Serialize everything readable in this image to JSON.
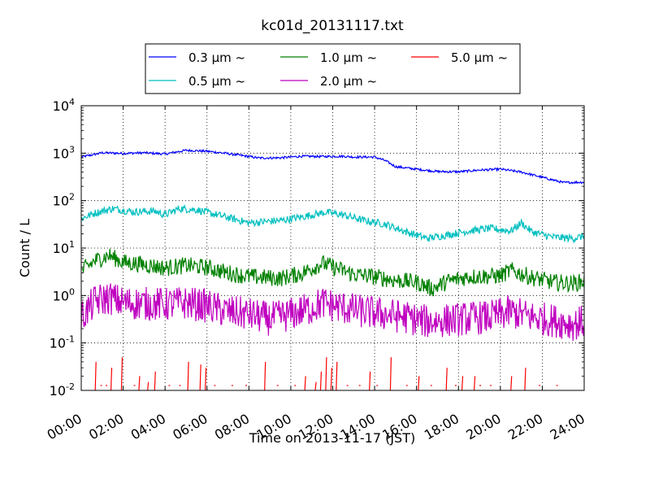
{
  "chart_data": {
    "type": "line",
    "title": "kc01d_20131117.txt",
    "xlabel": "Time on 2013-11-17 (JST)",
    "ylabel": "Count / L",
    "xlim": [
      "2013-11-17 00:00",
      "2013-11-18 00:00"
    ],
    "ylim": [
      0.01,
      10000
    ],
    "yscale": "log",
    "grid": true,
    "legend_position": "top-center, above plot",
    "x_ticks": [
      "00:00",
      "02:00",
      "04:00",
      "06:00",
      "08:00",
      "10:00",
      "12:00",
      "14:00",
      "16:00",
      "18:00",
      "20:00",
      "22:00",
      "24:00"
    ],
    "y_ticks": [
      {
        "value": 0.01,
        "base": "10",
        "exp": "-2"
      },
      {
        "value": 0.1,
        "base": "10",
        "exp": "-1"
      },
      {
        "value": 1,
        "base": "10",
        "exp": "0"
      },
      {
        "value": 10,
        "base": "10",
        "exp": "1"
      },
      {
        "value": 100,
        "base": "10",
        "exp": "2"
      },
      {
        "value": 1000,
        "base": "10",
        "exp": "3"
      },
      {
        "value": 10000,
        "base": "10",
        "exp": "4"
      }
    ],
    "series": [
      {
        "name": "0.3 µm ~",
        "color": "#0000ff",
        "noise": 0.006,
        "points": [
          [
            "00:00",
            830
          ],
          [
            "01:00",
            1020
          ],
          [
            "02:00",
            990
          ],
          [
            "03:00",
            1020
          ],
          [
            "04:00",
            960
          ],
          [
            "05:00",
            1150
          ],
          [
            "06:00",
            1100
          ],
          [
            "07:00",
            980
          ],
          [
            "08:00",
            850
          ],
          [
            "08:30",
            790
          ],
          [
            "09:30",
            800
          ],
          [
            "10:30",
            860
          ],
          [
            "11:30",
            850
          ],
          [
            "12:30",
            860
          ],
          [
            "13:00",
            830
          ],
          [
            "14:00",
            830
          ],
          [
            "14:30",
            700
          ],
          [
            "15:00",
            520
          ],
          [
            "16:00",
            460
          ],
          [
            "17:00",
            410
          ],
          [
            "18:00",
            405
          ],
          [
            "19:00",
            440
          ],
          [
            "20:00",
            460
          ],
          [
            "21:00",
            400
          ],
          [
            "22:00",
            310
          ],
          [
            "23:00",
            240
          ],
          [
            "24:00",
            245
          ]
        ]
      },
      {
        "name": "0.5 µm ~",
        "color": "#00bfbf",
        "noise": 0.02,
        "points": [
          [
            "00:00",
            42
          ],
          [
            "00:40",
            55
          ],
          [
            "01:30",
            68
          ],
          [
            "02:30",
            58
          ],
          [
            "03:30",
            60
          ],
          [
            "04:00",
            50
          ],
          [
            "04:40",
            68
          ],
          [
            "05:30",
            64
          ],
          [
            "06:30",
            50
          ],
          [
            "08:00",
            34
          ],
          [
            "09:30",
            38
          ],
          [
            "10:30",
            45
          ],
          [
            "11:40",
            57
          ],
          [
            "12:30",
            50
          ],
          [
            "13:30",
            38
          ],
          [
            "14:30",
            32
          ],
          [
            "15:30",
            22
          ],
          [
            "16:30",
            16
          ],
          [
            "17:30",
            19
          ],
          [
            "18:30",
            23
          ],
          [
            "19:30",
            26
          ],
          [
            "20:30",
            23
          ],
          [
            "21:00",
            34
          ],
          [
            "21:30",
            22
          ],
          [
            "22:30",
            17
          ],
          [
            "23:30",
            16
          ],
          [
            "24:00",
            18
          ]
        ]
      },
      {
        "name": "1.0 µm ~",
        "color": "#008000",
        "noise": 0.045,
        "points": [
          [
            "00:00",
            3.2
          ],
          [
            "00:40",
            5.5
          ],
          [
            "01:20",
            7.0
          ],
          [
            "02:00",
            5.0
          ],
          [
            "03:00",
            4.5
          ],
          [
            "04:00",
            3.8
          ],
          [
            "05:00",
            4.3
          ],
          [
            "06:00",
            3.9
          ],
          [
            "07:00",
            3.0
          ],
          [
            "08:00",
            2.5
          ],
          [
            "09:30",
            2.3
          ],
          [
            "10:30",
            2.9
          ],
          [
            "11:30",
            4.8
          ],
          [
            "12:00",
            4.0
          ],
          [
            "13:00",
            2.8
          ],
          [
            "14:00",
            2.5
          ],
          [
            "15:00",
            2.1
          ],
          [
            "16:00",
            1.9
          ],
          [
            "16:45",
            1.4
          ],
          [
            "17:30",
            2.0
          ],
          [
            "18:30",
            2.5
          ],
          [
            "20:00",
            2.6
          ],
          [
            "20:30",
            3.4
          ],
          [
            "21:30",
            2.4
          ],
          [
            "22:30",
            1.9
          ],
          [
            "23:30",
            1.8
          ],
          [
            "24:00",
            2.0
          ]
        ]
      },
      {
        "name": "2.0 µm ~",
        "color": "#bf00bf",
        "noise": 0.09,
        "points": [
          [
            "00:00",
            0.35
          ],
          [
            "00:40",
            0.75
          ],
          [
            "01:20",
            0.9
          ],
          [
            "02:00",
            0.7
          ],
          [
            "04:00",
            0.65
          ],
          [
            "05:00",
            0.7
          ],
          [
            "06:00",
            0.6
          ],
          [
            "07:00",
            0.45
          ],
          [
            "08:00",
            0.4
          ],
          [
            "09:00",
            0.32
          ],
          [
            "10:00",
            0.4
          ],
          [
            "11:00",
            0.55
          ],
          [
            "11:30",
            0.7
          ],
          [
            "12:30",
            0.55
          ],
          [
            "13:30",
            0.45
          ],
          [
            "14:30",
            0.4
          ],
          [
            "15:30",
            0.35
          ],
          [
            "16:30",
            0.28
          ],
          [
            "17:30",
            0.3
          ],
          [
            "18:30",
            0.33
          ],
          [
            "19:30",
            0.35
          ],
          [
            "20:30",
            0.45
          ],
          [
            "21:30",
            0.35
          ],
          [
            "22:30",
            0.3
          ],
          [
            "23:30",
            0.25
          ],
          [
            "24:00",
            0.28
          ]
        ]
      },
      {
        "name": "5.0 µm ~",
        "color": "#ff0000",
        "noise": 0,
        "spikes": [
          [
            "00:40",
            0.04
          ],
          [
            "01:25",
            0.03
          ],
          [
            "01:55",
            0.05
          ],
          [
            "02:45",
            0.02
          ],
          [
            "03:10",
            0.015
          ],
          [
            "03:30",
            0.025
          ],
          [
            "05:05",
            0.04
          ],
          [
            "05:40",
            0.035
          ],
          [
            "05:55",
            0.03
          ],
          [
            "08:45",
            0.04
          ],
          [
            "10:40",
            0.02
          ],
          [
            "11:10",
            0.015
          ],
          [
            "11:25",
            0.025
          ],
          [
            "11:40",
            0.05
          ],
          [
            "11:55",
            0.03
          ],
          [
            "12:10",
            0.04
          ],
          [
            "13:45",
            0.025
          ],
          [
            "14:45",
            0.05
          ],
          [
            "16:05",
            0.02
          ],
          [
            "17:25",
            0.03
          ],
          [
            "18:10",
            0.02
          ],
          [
            "18:45",
            0.02
          ],
          [
            "20:30",
            0.02
          ],
          [
            "21:10",
            0.03
          ]
        ],
        "dots": [
          "00:55",
          "01:10",
          "02:30",
          "04:10",
          "04:40",
          "06:20",
          "07:10",
          "07:50",
          "09:20",
          "10:10",
          "12:40",
          "13:15",
          "14:05",
          "15:30",
          "16:40",
          "17:50",
          "19:00",
          "19:30",
          "21:50",
          "22:40"
        ]
      }
    ]
  }
}
